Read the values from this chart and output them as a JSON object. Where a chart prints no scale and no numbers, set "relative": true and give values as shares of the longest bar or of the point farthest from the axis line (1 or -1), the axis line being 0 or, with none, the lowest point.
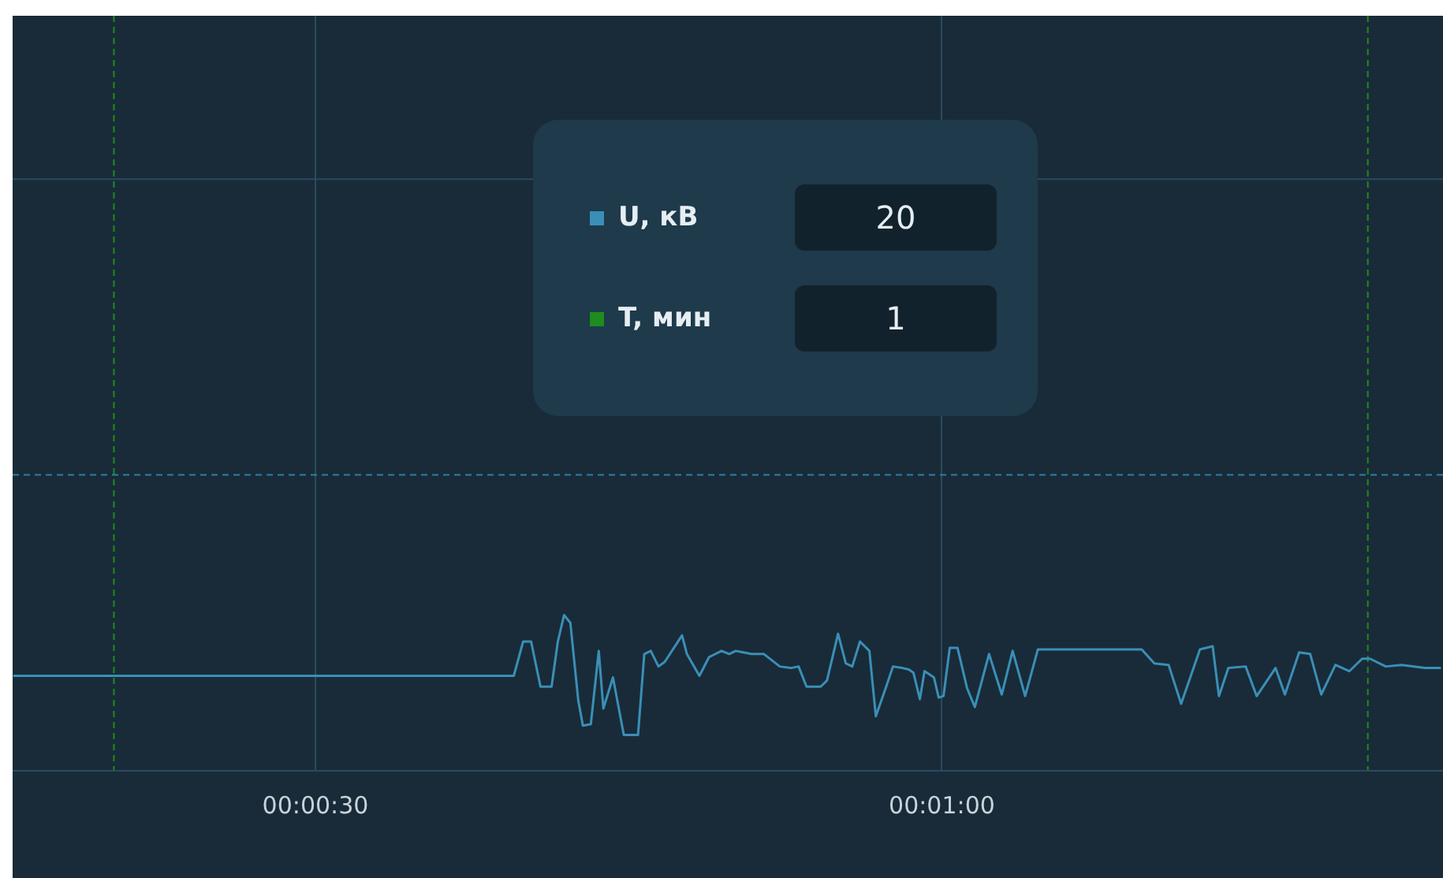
{
  "chart_data": {
    "type": "line",
    "relative": true,
    "grid": "x",
    "legend": false,
    "marker": "none",
    "line_style": "solid",
    "x": [
      15.53,
      39.5,
      39.95,
      40.33,
      40.78,
      41.31,
      41.61,
      41.91,
      42.21,
      42.59,
      42.81,
      43.19,
      43.57,
      43.79,
      44.25,
      44.77,
      45.45,
      45.75,
      46.06,
      46.43,
      46.73,
      47.56,
      47.79,
      48.39,
      48.85,
      49.45,
      49.82,
      50.13,
      50.5,
      50.88,
      51.48,
      52.24,
      52.77,
      53.14,
      53.52,
      54.2,
      54.5,
      55.03,
      55.4,
      55.71,
      56.08,
      56.53,
      56.84,
      57.36,
      57.66,
      58.12,
      58.42,
      58.64,
      58.95,
      59.17,
      59.62,
      59.85,
      60.08,
      60.38,
      60.75,
      61.21,
      61.58,
      62.26,
      62.87,
      63.39,
      63.99,
      64.6,
      69.57,
      70.18,
      70.86,
      71.46,
      72.36,
      72.97,
      73.27,
      73.72,
      74.55,
      75.08,
      75.98,
      76.43,
      77.11,
      77.64,
      78.17,
      78.85,
      79.52,
      80.13,
      80.5,
      81.26,
      82.01,
      83.14,
      83.9
    ],
    "series": [
      {
        "color": "#3a8fb7",
        "values": [
          0.61,
          0.61,
          0.83,
          0.83,
          0.54,
          0.54,
          0.83,
          1.0,
          0.95,
          0.45,
          0.29,
          0.3,
          0.77,
          0.4,
          0.6,
          0.23,
          0.23,
          0.75,
          0.77,
          0.67,
          0.7,
          0.87,
          0.75,
          0.61,
          0.73,
          0.77,
          0.75,
          0.77,
          0.76,
          0.75,
          0.75,
          0.67,
          0.66,
          0.67,
          0.54,
          0.54,
          0.58,
          0.88,
          0.69,
          0.67,
          0.83,
          0.77,
          0.35,
          0.55,
          0.67,
          0.66,
          0.65,
          0.63,
          0.46,
          0.64,
          0.6,
          0.47,
          0.48,
          0.79,
          0.79,
          0.53,
          0.41,
          0.75,
          0.49,
          0.77,
          0.48,
          0.78,
          0.78,
          0.69,
          0.68,
          0.43,
          0.78,
          0.8,
          0.48,
          0.66,
          0.67,
          0.48,
          0.66,
          0.49,
          0.76,
          0.75,
          0.49,
          0.68,
          0.64,
          0.72,
          0.72,
          0.67,
          0.68,
          0.66,
          0.66
        ]
      }
    ],
    "xlim": [
      15.5,
      84
    ],
    "xticks": [
      {
        "value": 30,
        "label": "00:00:30"
      },
      {
        "value": 60,
        "label": "00:01:00"
      }
    ],
    "ref_lines": [
      {
        "axis": "x",
        "value": 20.35,
        "color": "#1e8c1e",
        "line_style": "dashed"
      },
      {
        "axis": "x",
        "value": 80.4,
        "color": "#1e8c1e",
        "line_style": "dashed"
      },
      {
        "axis": "y",
        "value": 1.9,
        "color": "#2f7fa3",
        "line_style": "dashed"
      },
      {
        "axis": "y",
        "value": 3.8,
        "color": "#2a4b60",
        "line_style": "solid"
      }
    ],
    "annotations": [
      "U, кВ",
      "20",
      "T, мин",
      "1"
    ]
  }
}
